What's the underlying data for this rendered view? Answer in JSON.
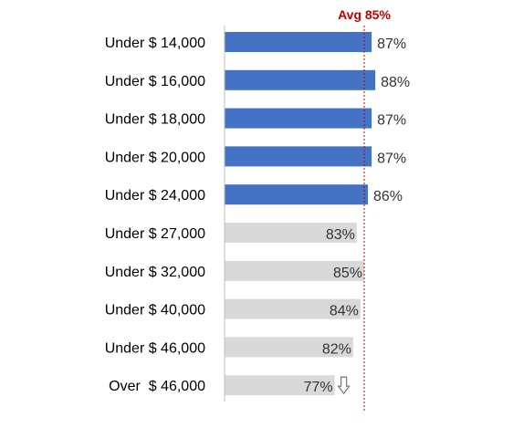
{
  "chart_data": {
    "type": "bar",
    "orientation": "horizontal",
    "categories": [
      "Under $ 14,000",
      "Under $ 16,000",
      "Under $ 18,000",
      "Under $ 20,000",
      "Under $ 24,000",
      "Under $ 27,000",
      "Under $ 32,000",
      "Under $ 40,000",
      "Under $ 46,000",
      "Over  $ 46,000"
    ],
    "values": [
      87,
      88,
      87,
      87,
      86,
      83,
      85,
      84,
      82,
      77
    ],
    "value_labels": [
      "87%",
      "88%",
      "87%",
      "87%",
      "86%",
      "83%",
      "85%",
      "84%",
      "82%",
      "77%"
    ],
    "highlighted": [
      true,
      true,
      true,
      true,
      true,
      false,
      false,
      false,
      false,
      false
    ],
    "reference_line": {
      "label": "Avg 85%",
      "value": 85,
      "style": "dashed",
      "color": "#c00000"
    },
    "down_arrow_on": "Over  $ 46,000",
    "colors": {
      "highlight": "#4472c4",
      "normal": "#d9d9d9",
      "axis": "#bfbfbf",
      "label_text": "#000000",
      "value_text": "#333333",
      "arrow": "#7f7f7f"
    },
    "grid": false
  }
}
